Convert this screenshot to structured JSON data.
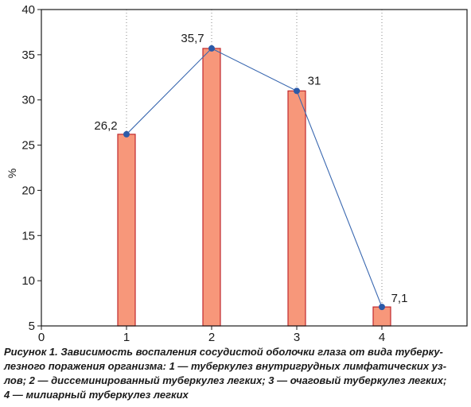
{
  "chart_data": {
    "type": "bar",
    "categories": [
      "1",
      "2",
      "3",
      "4"
    ],
    "x_ticks": [
      "0",
      "1",
      "2",
      "3",
      "4"
    ],
    "values": [
      26.2,
      35.7,
      31,
      7.1
    ],
    "value_labels": [
      "26,2",
      "35,7",
      "31",
      "7,1"
    ],
    "line_overlay": true,
    "ylabel": "%",
    "xlabel": "",
    "title": "",
    "ylim": [
      5,
      40
    ],
    "xlim": [
      0,
      5
    ],
    "y_ticks": [
      5,
      10,
      15,
      20,
      25,
      30,
      35,
      40
    ],
    "grid": "vertical dotted",
    "legend": "none"
  },
  "caption": {
    "lines": [
      "Рисунок 1. Зависимость воспаления сосудистой оболочки глаза от вида туберку-",
      "лезного поражения организма: 1 — туберкулез внутригрудных лимфатических уз-",
      "лов; 2 — диссеминированный туберкулез легких; 3 — очаговый туберкулез легких;",
      "4 — милиарный туберкулез легких"
    ]
  },
  "colors": {
    "bar_fill": "#f7977a",
    "bar_stroke": "#c0282d",
    "line": "#3a68b0",
    "point": "#2c5aa8",
    "axis": "#1a1a1a",
    "grid": "#8a8a8a"
  }
}
